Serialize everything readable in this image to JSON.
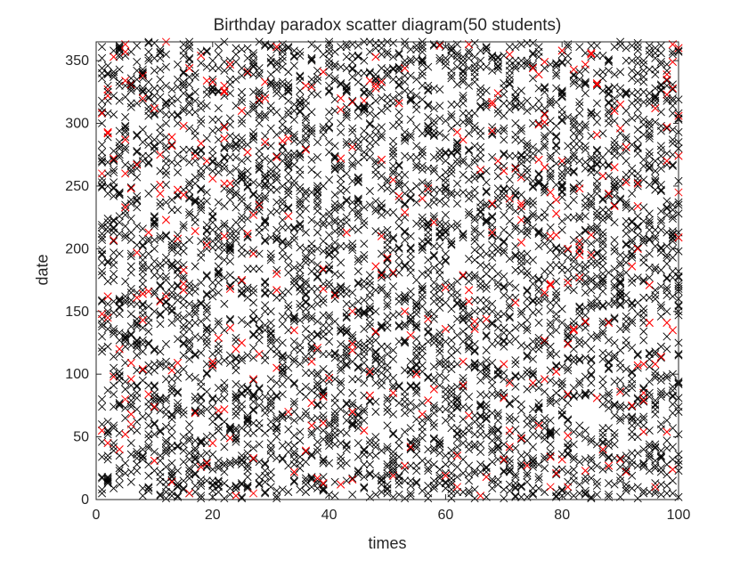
{
  "chart_data": {
    "type": "scatter",
    "title": "Birthday paradox scatter diagram(50 students)",
    "xlabel": "times",
    "ylabel": "date",
    "xlim": [
      0,
      100
    ],
    "ylim": [
      0,
      365
    ],
    "xticks": [
      0,
      20,
      40,
      60,
      80,
      100
    ],
    "yticks": [
      0,
      50,
      100,
      150,
      200,
      250,
      300,
      350
    ],
    "grid": false,
    "marker": "x",
    "series": [
      {
        "points_per_trial": 50,
        "trials": 100,
        "colors": {
          "unique_birthday": "#000000",
          "shared_birthday": "#ff0000"
        }
      }
    ],
    "samples_x": [
      1,
      1,
      1,
      2,
      2,
      3,
      5,
      6,
      8,
      12,
      16,
      20,
      25,
      27,
      33,
      38,
      44,
      50,
      57,
      62,
      70,
      78,
      81,
      83,
      85,
      88,
      93,
      96,
      99,
      100
    ],
    "samples_y": [
      260,
      130,
      5,
      340,
      145,
      100,
      80,
      60,
      320,
      365,
      5,
      270,
      300,
      5,
      70,
      200,
      150,
      40,
      250,
      10,
      215,
      10,
      200,
      195,
      195,
      350,
      340,
      10,
      5,
      245
    ],
    "samples_shared": [
      1,
      0,
      0,
      0,
      1,
      0,
      1,
      1,
      1,
      1,
      1,
      0,
      0,
      1,
      1,
      0,
      1,
      0,
      0,
      1,
      0,
      1,
      1,
      1,
      1,
      0,
      0,
      1,
      0,
      1
    ]
  },
  "colors": {
    "axis": "#262626",
    "background": "#ffffff"
  }
}
